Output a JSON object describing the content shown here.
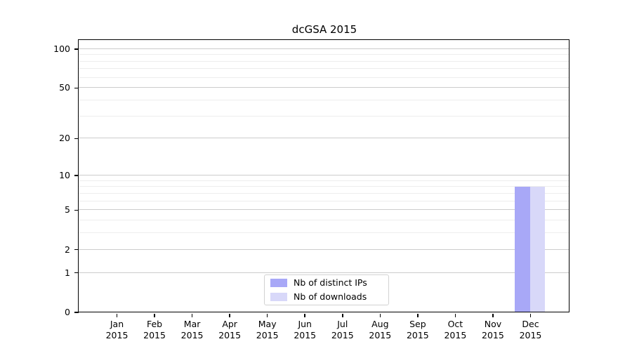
{
  "title": "dcGSA 2015",
  "chart_data": {
    "type": "bar",
    "title": "dcGSA 2015",
    "x_categories": [
      "Jan",
      "Feb",
      "Mar",
      "Apr",
      "May",
      "Jun",
      "Jul",
      "Aug",
      "Sep",
      "Oct",
      "Nov",
      "Dec"
    ],
    "x_year": "2015",
    "series": [
      {
        "name": "Nb of distinct IPs",
        "color": "#a8a8f7",
        "values": [
          0,
          0,
          0,
          0,
          0,
          0,
          0,
          0,
          0,
          0,
          0,
          8
        ]
      },
      {
        "name": "Nb of downloads",
        "color": "#d8d8f9",
        "values": [
          0,
          0,
          0,
          0,
          0,
          0,
          0,
          0,
          0,
          0,
          0,
          8
        ]
      }
    ],
    "y_ticks": [
      0,
      1,
      2,
      5,
      10,
      20,
      50,
      100
    ],
    "y_minor_ticks": [
      3,
      4,
      6,
      7,
      8,
      9,
      30,
      40,
      60,
      70,
      80,
      90
    ],
    "y_scale": "log10(1+value)",
    "ylim": [
      0,
      116
    ],
    "grid": "horizontal-major-and-minor",
    "legend_position": "lower-center",
    "colors": {
      "major_gridline": "#cccccc",
      "minor_gridline": "#ededed",
      "axis": "#000000",
      "background": "#ffffff"
    }
  }
}
